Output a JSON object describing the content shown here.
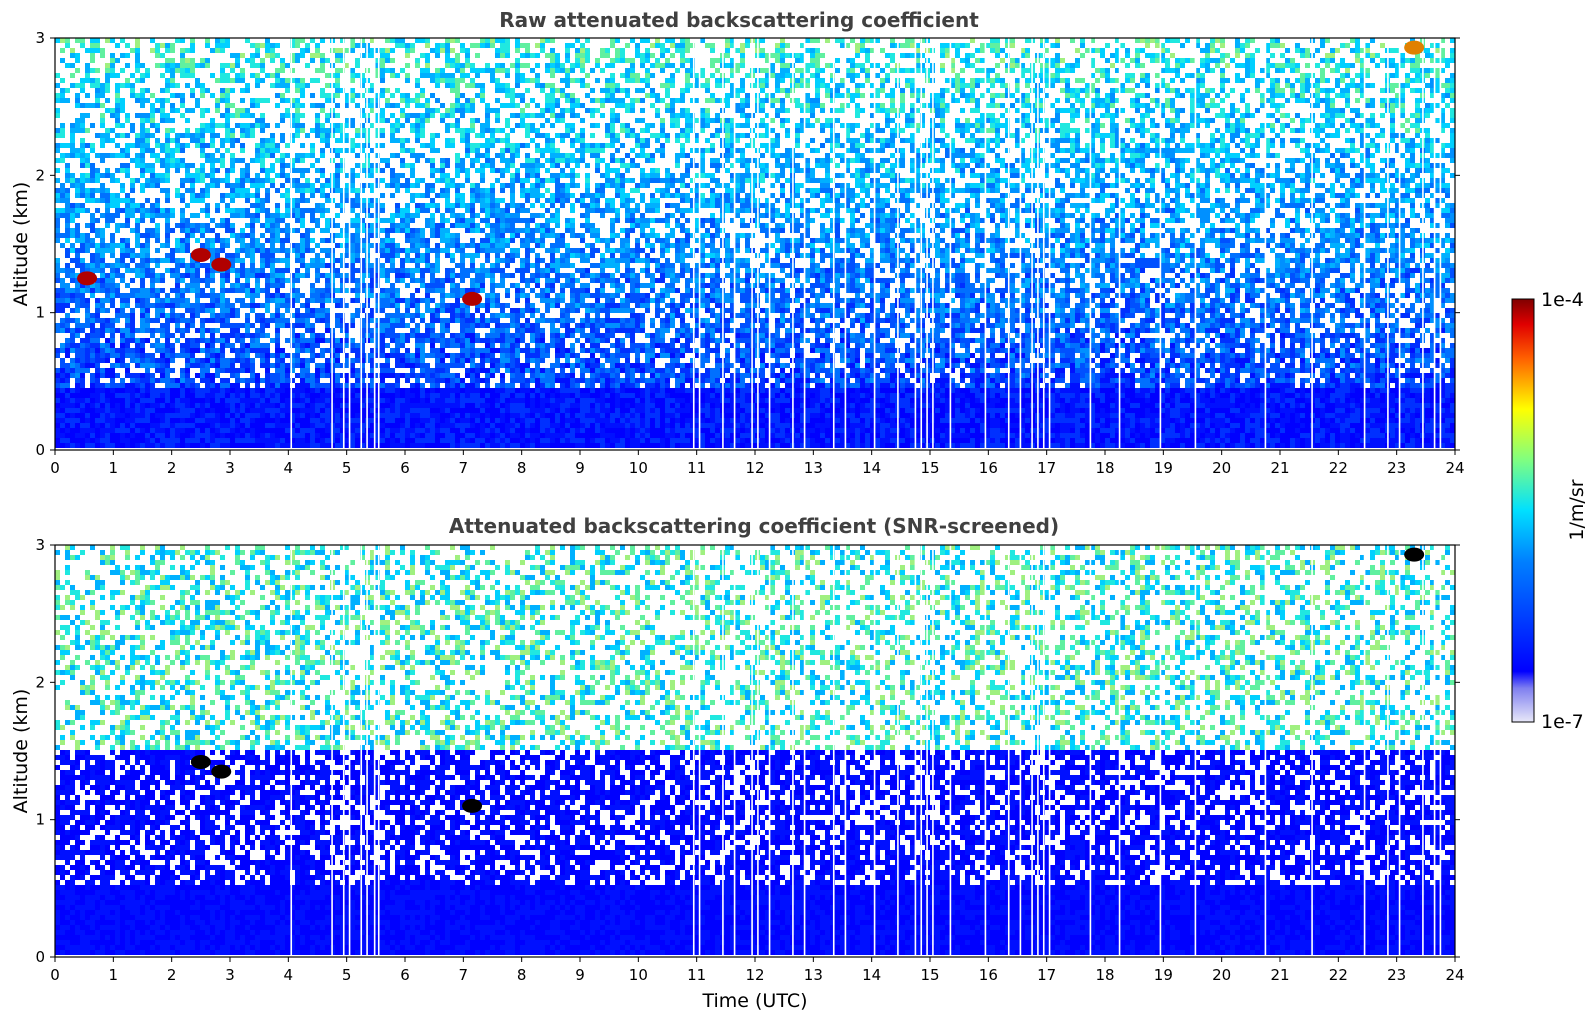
{
  "chart_data": [
    {
      "type": "heatmap",
      "title": "Raw attenuated backscattering coefficient",
      "xlabel": "",
      "ylabel": "Altitude (km)",
      "xlim": [
        0,
        24
      ],
      "ylim": [
        0,
        3
      ],
      "x_ticks": [
        "0",
        "1",
        "2",
        "3",
        "4",
        "5",
        "6",
        "7",
        "8",
        "9",
        "10",
        "11",
        "12",
        "13",
        "14",
        "15",
        "16",
        "17",
        "18",
        "19",
        "20",
        "21",
        "22",
        "23",
        "24"
      ],
      "y_ticks": [
        "0",
        "1",
        "2",
        "3"
      ],
      "features": [
        {
          "time": 0.55,
          "altitude": 1.25,
          "level": "high"
        },
        {
          "time": 2.5,
          "altitude": 1.42,
          "level": "high"
        },
        {
          "time": 2.85,
          "altitude": 1.35,
          "level": "high"
        },
        {
          "time": 7.15,
          "altitude": 1.1,
          "level": "high"
        },
        {
          "time": 23.3,
          "altitude": 2.93,
          "level": "medium"
        }
      ]
    },
    {
      "type": "heatmap",
      "title": "Attenuated backscattering coefficient (SNR-screened)",
      "xlabel": "Time (UTC)",
      "ylabel": "Altitude (km)",
      "xlim": [
        0,
        24
      ],
      "ylim": [
        0,
        3
      ],
      "x_ticks": [
        "0",
        "1",
        "2",
        "3",
        "4",
        "5",
        "6",
        "7",
        "8",
        "9",
        "10",
        "11",
        "12",
        "13",
        "14",
        "15",
        "16",
        "17",
        "18",
        "19",
        "20",
        "21",
        "22",
        "23",
        "24"
      ],
      "y_ticks": [
        "0",
        "1",
        "2",
        "3"
      ],
      "features": [
        {
          "time": 2.5,
          "altitude": 1.42,
          "level": "saturated"
        },
        {
          "time": 2.85,
          "altitude": 1.35,
          "level": "saturated"
        },
        {
          "time": 7.15,
          "altitude": 1.1,
          "level": "saturated"
        },
        {
          "time": 23.3,
          "altitude": 2.93,
          "level": "saturated"
        }
      ]
    }
  ],
  "colorbar": {
    "label": "1/m/sr",
    "max_label": "1e-4",
    "min_label": "1e-7",
    "colormap": "jet",
    "scale": "log"
  }
}
